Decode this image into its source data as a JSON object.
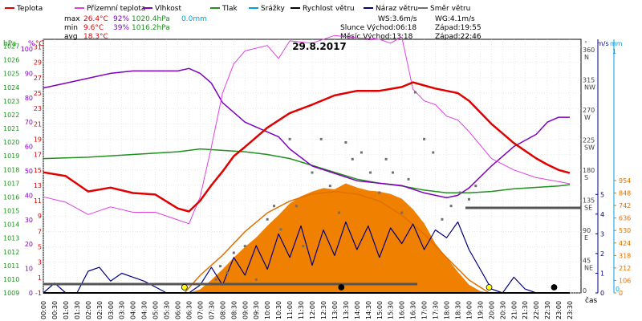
{
  "chart_data": {
    "type": "line",
    "title": "29.8.2017",
    "legend": [
      {
        "label": "Teplota",
        "color": "#e00000"
      },
      {
        "label": "Přízemní teplota",
        "color": "#e040e0"
      },
      {
        "label": "Vlhkost",
        "color": "#8000c0"
      },
      {
        "label": "Tlak",
        "color": "#209020"
      },
      {
        "label": "Srážky",
        "color": "#00a0e0"
      },
      {
        "label": "Rychlost větru",
        "color": "#000000"
      },
      {
        "label": "Náraz větru",
        "color": "#000080"
      },
      {
        "label": "Směr větru",
        "color": "#707070"
      }
    ],
    "stats": {
      "max": {
        "label": "max",
        "temp": "26.4°C",
        "hum": "92%",
        "press": "1020.4hPa",
        "rain": "0.0mm"
      },
      "min": {
        "label": "min",
        "temp": "9.6°C",
        "hum": "39%",
        "press": "1016.2hPa"
      },
      "avg": {
        "label": "avg",
        "temp": "18.3°C"
      }
    },
    "wind_info": {
      "ws": "WS:3.6m/s",
      "wg": "WG:4.1m/s"
    },
    "sun_info": {
      "sunrise": "Slunce Východ:06:18",
      "sunset": "Západ:19:55"
    },
    "moon_info": {
      "moonrise": "Měsíc  Východ:13:18",
      "moonset": "Západ:22:46"
    },
    "axes": {
      "hpa": {
        "unit": "hPa",
        "ticks": [
          "1027",
          "1026",
          "1025",
          "1024",
          "1023",
          "1022",
          "1021",
          "1020",
          "1019",
          "1018",
          "1017",
          "1016",
          "1015",
          "1014",
          "1013",
          "1012",
          "1011",
          "1010",
          "1009"
        ]
      },
      "humidity": {
        "unit": "%",
        "ticks": [
          "100",
          "90",
          "80",
          "70",
          "60",
          "50",
          "40",
          "30",
          "20",
          "10",
          "0"
        ]
      },
      "celsius": {
        "unit": "°C",
        "ticks": [
          "31",
          "29",
          "27",
          "25",
          "23",
          "21",
          "19",
          "17",
          "15",
          "13",
          "11",
          "9",
          "7",
          "5",
          "3",
          "1",
          "-1"
        ]
      },
      "direction": {
        "unit": "°",
        "ticks": [
          {
            "deg": "360",
            "dir": "N"
          },
          {
            "deg": "315",
            "dir": "NW"
          },
          {
            "deg": "270",
            "dir": "W"
          },
          {
            "deg": "225",
            "dir": "SW"
          },
          {
            "deg": "180",
            "dir": "S"
          },
          {
            "deg": "135",
            "dir": "SE"
          },
          {
            "deg": "90",
            "dir": "E"
          },
          {
            "deg": "45",
            "dir": "NE"
          },
          {
            "deg": "0",
            "dir": ""
          }
        ]
      },
      "wind_speed": {
        "unit": "m/s",
        "ticks": [
          "5",
          "4",
          "3",
          "2",
          "1",
          "0"
        ]
      },
      "rain": {
        "unit": "mm",
        "ticks": [
          "1",
          "0"
        ]
      },
      "solar": {
        "ticks": [
          "954",
          "848",
          "742",
          "636",
          "530",
          "424",
          "318",
          "212",
          "106",
          "0"
        ]
      },
      "x": {
        "label": "čas",
        "ticks": [
          "00:00",
          "00:30",
          "01:00",
          "01:30",
          "02:00",
          "02:30",
          "03:00",
          "03:30",
          "04:00",
          "04:30",
          "05:00",
          "05:30",
          "06:00",
          "06:30",
          "07:00",
          "07:30",
          "08:00",
          "08:30",
          "09:00",
          "09:30",
          "10:00",
          "10:30",
          "11:00",
          "11:30",
          "12:00",
          "12:30",
          "13:00",
          "13:30",
          "14:00",
          "14:30",
          "15:00",
          "15:30",
          "16:00",
          "16:30",
          "17:00",
          "17:30",
          "18:00",
          "18:30",
          "19:00",
          "19:30",
          "20:00",
          "20:30",
          "21:00",
          "21:30",
          "22:00",
          "22:30",
          "23:00",
          "23:30"
        ]
      }
    },
    "series": {
      "temperature": {
        "name": "Teplota",
        "unit": "°C",
        "x": [
          0,
          1,
          2,
          3,
          4,
          5,
          6,
          6.5,
          7,
          7.5,
          8,
          8.5,
          9,
          10,
          11,
          12,
          13,
          14,
          15,
          16,
          16.5,
          17,
          17.5,
          18,
          18.5,
          19,
          20,
          21,
          22,
          22.5,
          23,
          23.5
        ],
        "values": [
          14.7,
          14.2,
          12.2,
          12.7,
          12.0,
          11.8,
          10.0,
          9.6,
          11.0,
          13.0,
          14.8,
          16.8,
          18.0,
          20.5,
          22.4,
          23.5,
          24.7,
          25.3,
          25.3,
          25.8,
          26.4,
          26.0,
          25.6,
          25.3,
          25.0,
          24.0,
          21.0,
          18.5,
          16.5,
          15.7,
          15.0,
          14.6
        ]
      },
      "ground_temperature": {
        "name": "Přízemní teplota",
        "unit": "°C",
        "x": [
          0,
          1,
          2,
          3,
          4,
          5,
          6,
          6.5,
          7,
          7.5,
          8,
          8.5,
          9,
          10,
          10.5,
          11,
          12,
          13,
          14,
          15,
          15.5,
          16,
          16.5,
          17,
          17.5,
          18,
          18.5,
          19,
          20,
          21,
          22,
          23,
          23.5
        ],
        "values": [
          11.5,
          10.8,
          9.2,
          10.2,
          9.5,
          9.5,
          8.5,
          8.0,
          11.5,
          18.0,
          25.0,
          28.8,
          30.5,
          31.2,
          29.5,
          31.8,
          31.5,
          32.5,
          32.2,
          32.0,
          31.5,
          32.3,
          25.5,
          24.0,
          23.5,
          22.0,
          21.5,
          20.0,
          16.5,
          15.0,
          14.0,
          13.5,
          13.2
        ]
      },
      "humidity": {
        "name": "Vlhkost",
        "unit": "%",
        "x": [
          0,
          1,
          2,
          3,
          4,
          5,
          6,
          6.5,
          7,
          7.5,
          8,
          9,
          10,
          10.5,
          11,
          12,
          13,
          14,
          15,
          16,
          17,
          18,
          18.5,
          19,
          20,
          21,
          22,
          22.5,
          23,
          23.5
        ],
        "values": [
          84,
          86,
          88,
          90,
          91,
          91,
          91,
          92,
          90,
          86,
          78,
          70,
          66,
          64,
          59,
          52,
          49,
          46,
          45,
          44,
          41,
          39,
          40,
          43,
          52,
          60,
          65,
          70,
          72,
          72
        ]
      },
      "pressure": {
        "name": "Tlak",
        "unit": "hPa",
        "x": [
          0,
          2,
          4,
          6,
          7,
          8,
          9,
          10,
          11,
          12,
          13,
          14,
          15,
          16,
          17,
          18,
          19,
          20,
          21,
          22,
          23,
          23.5
        ],
        "values": [
          1018.8,
          1018.9,
          1019.1,
          1019.3,
          1019.5,
          1019.4,
          1019.3,
          1019.1,
          1018.8,
          1018.3,
          1017.8,
          1017.3,
          1017.0,
          1016.8,
          1016.5,
          1016.3,
          1016.3,
          1016.4,
          1016.6,
          1016.7,
          1016.8,
          1016.9
        ]
      },
      "wind_speed": {
        "name": "Rychlost větru",
        "unit": "m/s",
        "x": [
          0,
          1,
          2,
          3,
          4,
          5,
          6,
          7,
          8,
          9,
          10,
          11,
          12,
          13,
          14,
          15,
          16,
          17,
          18,
          19,
          19.5,
          20,
          21,
          22,
          23,
          23.5
        ],
        "values": [
          0,
          0,
          0,
          0,
          0,
          0,
          0,
          0,
          0,
          0,
          0,
          0,
          0,
          0,
          0,
          0,
          0,
          0,
          0,
          0,
          0,
          0,
          0,
          0,
          0,
          0
        ]
      },
      "wind_gust": {
        "name": "Náraz větru",
        "unit": "m/s",
        "x": [
          0,
          0.5,
          1,
          1.5,
          2,
          2.5,
          3,
          3.5,
          4,
          4.5,
          5,
          5.5,
          6,
          6.5,
          7,
          7.5,
          8,
          8.5,
          9,
          9.5,
          10,
          10.5,
          11,
          11.5,
          12,
          12.5,
          13,
          13.5,
          14,
          14.5,
          15,
          15.5,
          16,
          16.5,
          17,
          17.5,
          18,
          18.5,
          19,
          19.5,
          20,
          20.5,
          21,
          21.5,
          22,
          22.5,
          23,
          23.5
        ],
        "values": [
          0,
          0.5,
          0,
          0,
          1.1,
          1.3,
          0.6,
          1.0,
          0.8,
          0.6,
          0.3,
          0,
          0,
          0,
          0.4,
          1.3,
          0.4,
          1.8,
          0.9,
          2.4,
          1.2,
          3.0,
          1.8,
          3.4,
          1.4,
          3.2,
          1.9,
          3.6,
          2.2,
          3.4,
          1.8,
          3.3,
          2.5,
          3.5,
          2.2,
          3.2,
          2.8,
          3.6,
          2.2,
          1.2,
          0.2,
          0,
          0.8,
          0.2,
          0,
          0,
          0,
          0
        ]
      },
      "wind_direction": {
        "name": "Směr větru",
        "unit": "°",
        "x": [
          7.7,
          7.9,
          8.2,
          8.5,
          9,
          9.5,
          10,
          10.3,
          10.6,
          11,
          11.3,
          11.6,
          12,
          12.4,
          12.8,
          13.2,
          13.5,
          13.8,
          14.2,
          14.6,
          15,
          15.3,
          15.6,
          16,
          16.3,
          16.6,
          17,
          17.4,
          17.8,
          18.2,
          18.6,
          19,
          19.3
        ],
        "values": [
          20,
          40,
          30,
          60,
          70,
          20,
          110,
          130,
          95,
          230,
          130,
          70,
          180,
          230,
          160,
          120,
          225,
          200,
          210,
          180,
          150,
          200,
          180,
          120,
          170,
          300,
          230,
          210,
          110,
          130,
          150,
          140,
          160
        ]
      },
      "solar": {
        "name": "solar",
        "unit": "W/m2",
        "x": [
          6.5,
          7,
          7.5,
          8,
          8.5,
          9,
          9.5,
          10,
          10.5,
          11,
          11.5,
          12,
          12.5,
          13,
          13.5,
          14,
          14.5,
          15,
          15.5,
          16,
          16.5,
          17,
          17.5,
          18,
          18.5,
          19,
          19.5,
          19.9
        ],
        "values": [
          0,
          30,
          110,
          200,
          300,
          390,
          470,
          570,
          660,
          760,
          820,
          860,
          890,
          880,
          930,
          895,
          870,
          860,
          840,
          800,
          710,
          590,
          420,
          300,
          180,
          70,
          15,
          0
        ]
      },
      "solar_theoretical": {
        "name": "solar max",
        "unit": "W/m2",
        "x": [
          6.3,
          7,
          8,
          9,
          10,
          11,
          12,
          13,
          14,
          15,
          16,
          17,
          18,
          19,
          19.9
        ],
        "values": [
          0,
          150,
          320,
          520,
          680,
          780,
          840,
          860,
          840,
          780,
          660,
          500,
          300,
          110,
          0
        ]
      }
    },
    "events": [
      {
        "type": "sunrise",
        "x": 6.3,
        "color": "#ffff00"
      },
      {
        "type": "moonrise",
        "x": 13.3,
        "color": "#000000"
      },
      {
        "type": "sunset",
        "x": 19.9,
        "color": "#ffff00"
      },
      {
        "type": "moonset",
        "x": 22.8,
        "color": "#000000"
      }
    ]
  }
}
